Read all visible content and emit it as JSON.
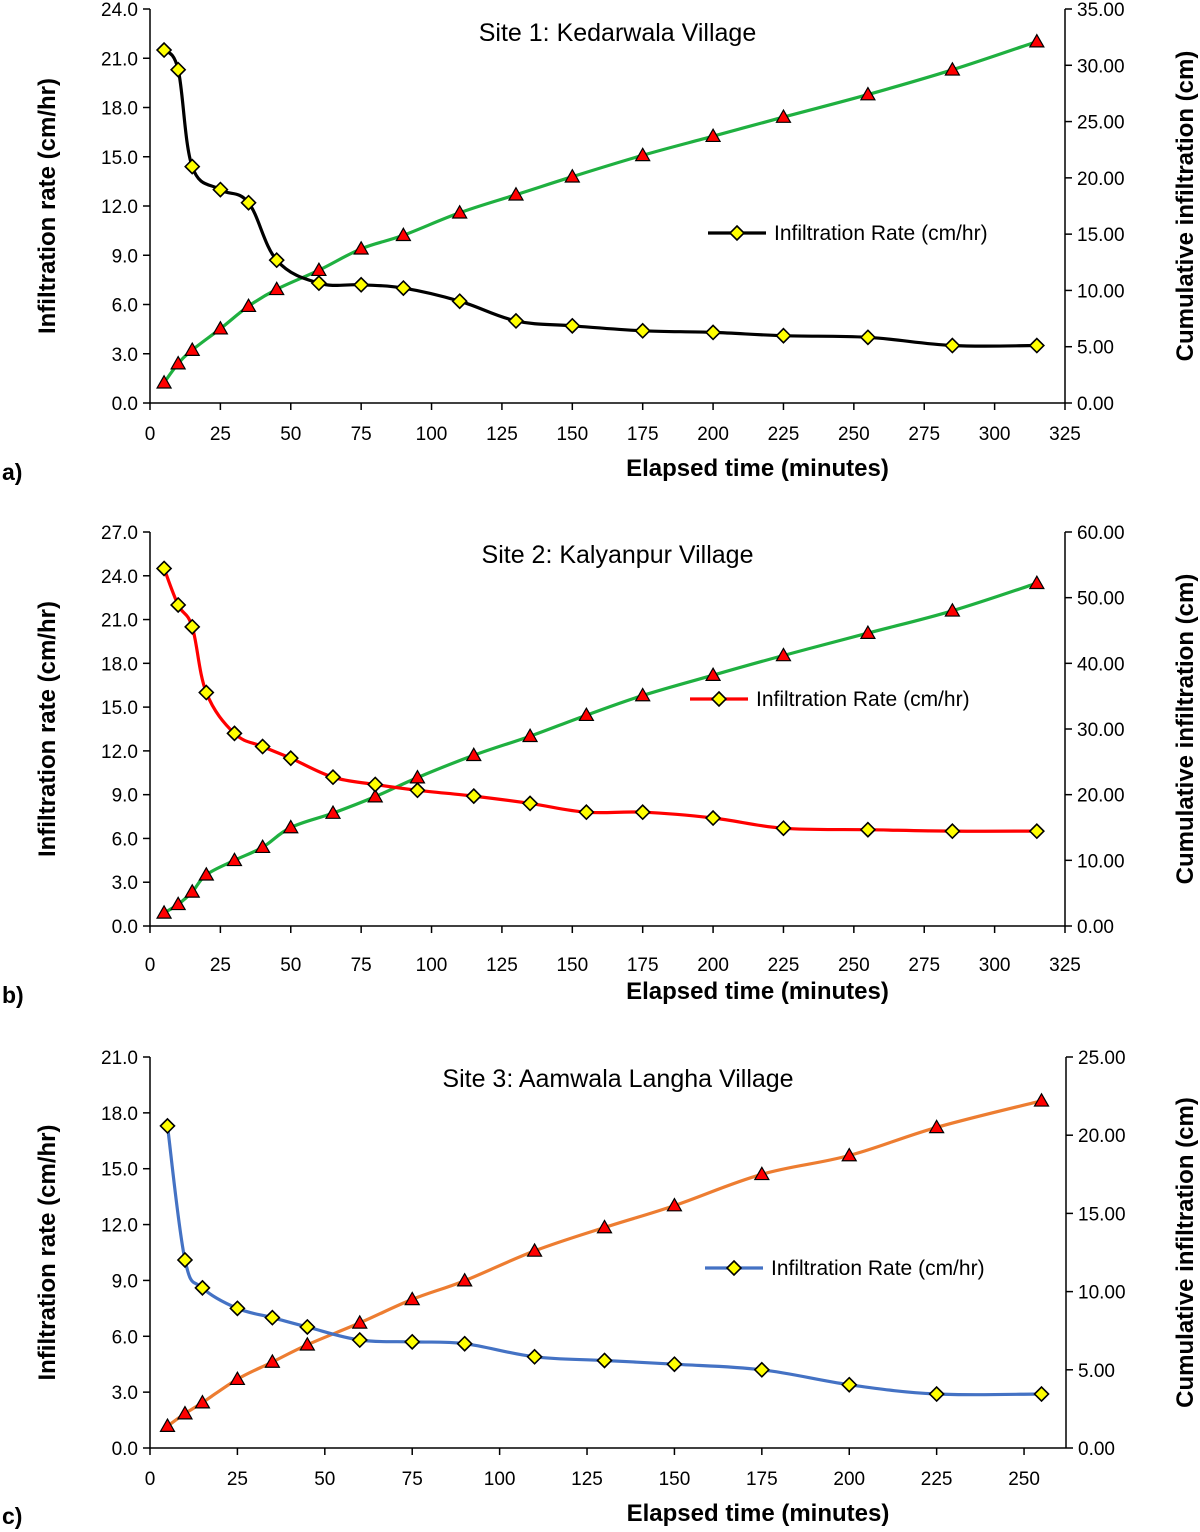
{
  "chart_data": [
    {
      "type": "line",
      "panel_label": "a)",
      "title": "Site 1: Kedarwala Village",
      "xlabel": "Elapsed time (minutes)",
      "ylabel": "Infiltration rate (cm/hr)",
      "y2label": "Cumulative infiltration (cm)",
      "xlim": [
        0,
        325
      ],
      "ylim": [
        0,
        24
      ],
      "y2lim": [
        0,
        35
      ],
      "xticks": [
        0,
        25,
        50,
        75,
        100,
        125,
        150,
        175,
        200,
        225,
        250,
        275,
        300,
        325
      ],
      "yticks": [
        "0.0",
        "3.0",
        "6.0",
        "9.0",
        "12.0",
        "15.0",
        "18.0",
        "21.0",
        "24.0"
      ],
      "y2ticks": [
        "0.00",
        "5.00",
        "10.00",
        "15.00",
        "20.00",
        "25.00",
        "30.00",
        "35.00"
      ],
      "legend_position": "middle-right",
      "series": [
        {
          "name": "Infiltration Rate (cm/hr)",
          "axis": "left",
          "color": "#000000",
          "marker": "diamond",
          "x": [
            5,
            10,
            15,
            25,
            35,
            45,
            60,
            75,
            90,
            110,
            130,
            150,
            175,
            200,
            225,
            255,
            285,
            315
          ],
          "y": [
            21.5,
            20.3,
            14.4,
            13.0,
            12.2,
            8.7,
            7.3,
            7.2,
            7.0,
            6.2,
            5.0,
            4.7,
            4.4,
            4.3,
            4.1,
            4.0,
            3.5,
            3.5
          ]
        },
        {
          "axis": "right",
          "color": "#1fb040",
          "marker": "triangle",
          "x": [
            5,
            10,
            15,
            25,
            35,
            45,
            60,
            75,
            90,
            110,
            130,
            150,
            175,
            200,
            225,
            255,
            285,
            315
          ],
          "y": [
            1.8,
            3.5,
            4.7,
            6.6,
            8.6,
            10.1,
            11.8,
            13.7,
            14.9,
            16.9,
            18.5,
            20.1,
            22.0,
            23.7,
            25.4,
            27.4,
            29.6,
            32.1
          ]
        }
      ]
    },
    {
      "type": "line",
      "panel_label": "b)",
      "title": "Site 2: Kalyanpur Village",
      "xlabel": "Elapsed time (minutes)",
      "ylabel": "Infiltration rate (cm/hr)",
      "y2label": "Cumulative infiltration (cm)",
      "xlim": [
        0,
        325
      ],
      "ylim": [
        0,
        27
      ],
      "y2lim": [
        0,
        60
      ],
      "xticks": [
        0,
        25,
        50,
        75,
        100,
        125,
        150,
        175,
        200,
        225,
        250,
        275,
        300,
        325
      ],
      "yticks": [
        "0.0",
        "3.0",
        "6.0",
        "9.0",
        "12.0",
        "15.0",
        "18.0",
        "21.0",
        "24.0",
        "27.0"
      ],
      "y2ticks": [
        "0.00",
        "10.00",
        "20.00",
        "30.00",
        "40.00",
        "50.00",
        "60.00"
      ],
      "legend_position": "middle-right",
      "series": [
        {
          "name": "Infiltration Rate (cm/hr)",
          "axis": "left",
          "color": "#ff0000",
          "marker": "diamond",
          "x": [
            5,
            10,
            15,
            20,
            30,
            40,
            50,
            65,
            80,
            95,
            115,
            135,
            155,
            175,
            200,
            225,
            255,
            285,
            315
          ],
          "y": [
            24.5,
            22.0,
            20.5,
            16.0,
            13.2,
            12.3,
            11.5,
            10.2,
            9.7,
            9.3,
            8.9,
            8.4,
            7.8,
            7.8,
            7.4,
            6.7,
            6.6,
            6.5,
            6.5
          ]
        },
        {
          "axis": "right",
          "color": "#1fb040",
          "marker": "triangle",
          "x": [
            5,
            10,
            15,
            20,
            30,
            40,
            50,
            65,
            80,
            95,
            115,
            135,
            155,
            175,
            200,
            225,
            255,
            285,
            315
          ],
          "y": [
            2.0,
            3.3,
            5.2,
            7.8,
            10.0,
            12.0,
            15.0,
            17.2,
            19.7,
            22.6,
            26.0,
            28.9,
            32.1,
            35.1,
            38.2,
            41.2,
            44.6,
            48.0,
            52.2
          ]
        }
      ]
    },
    {
      "type": "line",
      "panel_label": "c)",
      "title": "Site 3: Aamwala Langha Village",
      "xlabel": "Elapsed time (minutes)",
      "ylabel": "Infiltration rate (cm/hr)",
      "y2label": "Cumulative infiltration (cm)",
      "xlim": [
        0,
        262
      ],
      "ylim": [
        0,
        21
      ],
      "y2lim": [
        0,
        25
      ],
      "xticks": [
        0,
        25,
        50,
        75,
        100,
        125,
        150,
        175,
        200,
        225,
        250
      ],
      "yticks": [
        "0.0",
        "3.0",
        "6.0",
        "9.0",
        "12.0",
        "15.0",
        "18.0",
        "21.0"
      ],
      "y2ticks": [
        "0.00",
        "5.00",
        "10.00",
        "15.00",
        "20.00",
        "25.00"
      ],
      "legend_position": "middle-right",
      "series": [
        {
          "name": "Infiltration Rate (cm/hr)",
          "axis": "left",
          "color": "#4472c4",
          "marker": "diamond",
          "x": [
            5,
            10,
            15,
            25,
            35,
            45,
            60,
            75,
            90,
            110,
            130,
            150,
            175,
            200,
            225,
            255
          ],
          "y": [
            17.3,
            10.1,
            8.6,
            7.5,
            7.0,
            6.5,
            5.8,
            5.7,
            5.6,
            4.9,
            4.7,
            4.5,
            4.2,
            3.4,
            2.9,
            2.9
          ]
        },
        {
          "axis": "right",
          "color": "#ed7d31",
          "marker": "triangle",
          "x": [
            5,
            10,
            15,
            25,
            35,
            45,
            60,
            75,
            90,
            110,
            130,
            150,
            175,
            200,
            225,
            255
          ],
          "y": [
            1.4,
            2.2,
            2.9,
            4.4,
            5.5,
            6.6,
            8.0,
            9.5,
            10.7,
            12.6,
            14.1,
            15.5,
            17.5,
            18.7,
            20.5,
            22.2
          ]
        }
      ]
    }
  ]
}
